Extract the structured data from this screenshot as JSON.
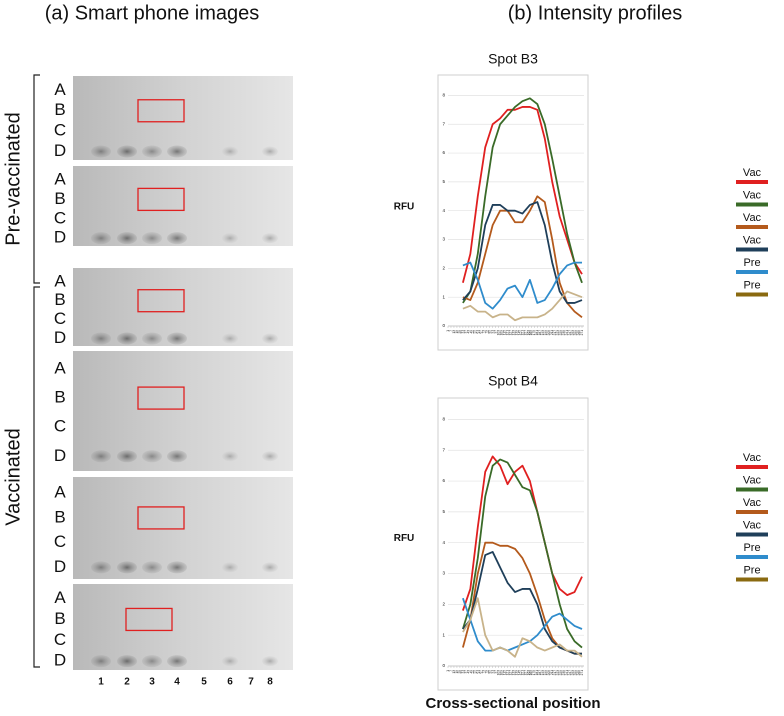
{
  "panel_a": {
    "title": "(a) Smart phone images",
    "row_labels": [
      "A",
      "B",
      "C",
      "D"
    ],
    "column_labels": [
      "1",
      "2",
      "3",
      "4",
      "5",
      "6",
      "7",
      "8"
    ],
    "groups": [
      {
        "label": "Pre-vaccinated"
      },
      {
        "label": "Vaccinated"
      }
    ]
  },
  "panel_b": {
    "title": "(b) Intensity profiles"
  },
  "chart_data": [
    {
      "type": "line",
      "title": "Spot B3",
      "y_label": "RFU",
      "x": [
        31,
        46,
        61,
        76,
        91,
        106,
        121,
        136,
        151,
        166,
        181,
        196,
        211,
        226,
        241,
        256,
        271
      ],
      "xlim": [
        1,
        275
      ],
      "ylim": [
        0,
        8.5
      ],
      "xticks": [
        1,
        7,
        13,
        19,
        25,
        31,
        37,
        43,
        49,
        55,
        61,
        67,
        73,
        79,
        85,
        91,
        97,
        103,
        109,
        115,
        121,
        127,
        133,
        139,
        145,
        151,
        157,
        163,
        169,
        175,
        181,
        187,
        193,
        199,
        205,
        211,
        217,
        223,
        229,
        235,
        241,
        247,
        253,
        259,
        265,
        271
      ],
      "yticks": [
        0,
        1,
        2,
        3,
        4,
        5,
        6,
        7,
        8
      ],
      "grid": true,
      "legend": "right",
      "series": [
        {
          "name": "Vac",
          "color": "#e02020",
          "values": [
            1.5,
            2.5,
            4.5,
            6.2,
            7.0,
            7.2,
            7.5,
            7.5,
            7.6,
            7.6,
            7.5,
            6.5,
            5.0,
            3.8,
            3.0,
            2.2,
            1.8
          ]
        },
        {
          "name": "Vac",
          "color": "#3a6b28",
          "values": [
            0.8,
            1.2,
            2.5,
            4.5,
            6.2,
            7.0,
            7.3,
            7.6,
            7.8,
            7.9,
            7.7,
            7.0,
            5.8,
            4.5,
            3.2,
            2.2,
            1.5
          ]
        },
        {
          "name": "Vac",
          "color": "#b45a1c",
          "values": [
            1.0,
            0.9,
            1.5,
            2.5,
            3.5,
            4.0,
            4.0,
            3.6,
            3.6,
            4.0,
            4.5,
            4.3,
            3.0,
            1.5,
            0.8,
            0.5,
            0.3
          ]
        },
        {
          "name": "Vac",
          "color": "#1f3f5a",
          "values": [
            0.9,
            1.2,
            2.0,
            3.5,
            4.2,
            4.2,
            4.0,
            4.0,
            3.9,
            4.2,
            4.3,
            3.5,
            2.2,
            1.2,
            0.8,
            0.8,
            0.9
          ]
        },
        {
          "name": "Pre",
          "color": "#2f8ccc",
          "values": [
            2.1,
            2.2,
            1.6,
            0.8,
            0.6,
            0.9,
            1.3,
            1.4,
            1.0,
            1.6,
            0.8,
            0.9,
            1.3,
            1.8,
            2.1,
            2.2,
            2.2
          ]
        },
        {
          "name": "Pre",
          "color": "#8a6a10",
          "line_color": "#c8b38a",
          "values": [
            0.6,
            0.7,
            0.5,
            0.5,
            0.3,
            0.4,
            0.4,
            0.2,
            0.3,
            0.3,
            0.3,
            0.4,
            0.6,
            0.9,
            1.2,
            1.1,
            1.0
          ]
        }
      ]
    },
    {
      "type": "line",
      "title": "Spot B4",
      "y_label": "RFU",
      "x_label": "Cross-sectional position",
      "x": [
        31,
        46,
        61,
        76,
        91,
        106,
        121,
        136,
        151,
        166,
        181,
        196,
        211,
        226,
        241,
        256,
        271
      ],
      "xlim": [
        1,
        275
      ],
      "ylim": [
        0,
        8.5
      ],
      "xticks": [
        1,
        7,
        13,
        19,
        25,
        31,
        37,
        43,
        49,
        55,
        61,
        67,
        73,
        79,
        85,
        91,
        97,
        103,
        109,
        115,
        121,
        127,
        133,
        139,
        145,
        151,
        157,
        163,
        169,
        175,
        181,
        187,
        193,
        199,
        205,
        211,
        217,
        223,
        229,
        235,
        241,
        247,
        253,
        259,
        265,
        271
      ],
      "yticks": [
        0,
        1,
        2,
        3,
        4,
        5,
        6,
        7,
        8
      ],
      "grid": true,
      "legend": "right",
      "series": [
        {
          "name": "Vac",
          "color": "#e02020",
          "values": [
            1.8,
            2.5,
            4.5,
            6.3,
            6.8,
            6.5,
            5.9,
            6.3,
            6.5,
            6.0,
            5.0,
            4.0,
            3.0,
            2.5,
            2.3,
            2.4,
            2.9
          ]
        },
        {
          "name": "Vac",
          "color": "#3a6b28",
          "values": [
            1.2,
            2.0,
            3.5,
            5.5,
            6.5,
            6.7,
            6.6,
            6.2,
            5.8,
            5.7,
            5.0,
            4.0,
            3.0,
            2.0,
            1.2,
            0.8,
            0.6
          ]
        },
        {
          "name": "Vac",
          "color": "#b45a1c",
          "values": [
            0.6,
            1.5,
            3.0,
            4.0,
            4.0,
            3.9,
            3.9,
            3.8,
            3.5,
            3.0,
            2.3,
            1.5,
            0.9,
            0.6,
            0.5,
            0.4,
            0.4
          ]
        },
        {
          "name": "Vac",
          "color": "#1f3f5a",
          "values": [
            1.2,
            1.5,
            2.5,
            3.6,
            3.7,
            3.2,
            2.7,
            2.4,
            2.5,
            2.5,
            2.0,
            1.2,
            0.8,
            0.6,
            0.5,
            0.4,
            0.4
          ]
        },
        {
          "name": "Pre",
          "color": "#2f8ccc",
          "values": [
            2.2,
            1.5,
            0.8,
            0.5,
            0.5,
            0.6,
            0.5,
            0.6,
            0.7,
            0.8,
            1.0,
            1.3,
            1.6,
            1.7,
            1.5,
            1.3,
            1.2
          ]
        },
        {
          "name": "Pre",
          "color": "#8a6a10",
          "line_color": "#c8b38a",
          "values": [
            1.1,
            1.5,
            2.2,
            1.0,
            0.5,
            0.6,
            0.5,
            0.3,
            0.9,
            0.8,
            0.6,
            0.5,
            0.6,
            0.7,
            0.5,
            0.5,
            0.3
          ]
        }
      ]
    }
  ]
}
